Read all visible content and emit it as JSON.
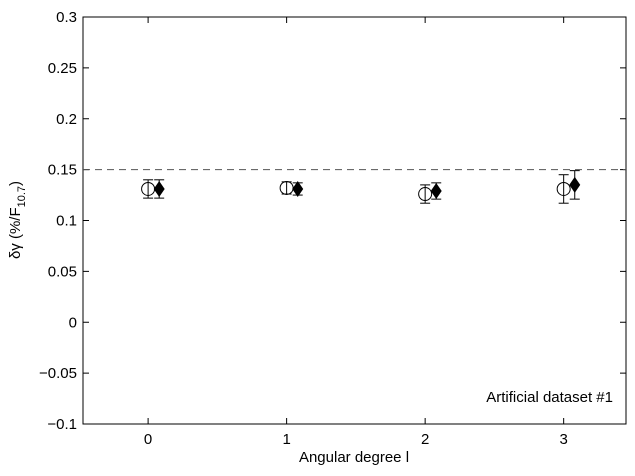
{
  "chart_data": {
    "type": "scatter",
    "xlabel": "Angular degree l",
    "ylabel": {
      "text": "δγ (%/F",
      "sub": "10.7",
      "end": ")"
    },
    "annotation": "Artificial dataset #1",
    "xlim": [
      -0.47,
      3.45
    ],
    "xticks": [
      0,
      1,
      2,
      3
    ],
    "ylim": [
      -0.1,
      0.3
    ],
    "yticks": [
      {
        "value": -0.1,
        "label": "−0.1"
      },
      {
        "value": -0.05,
        "label": "−0.05"
      },
      0,
      0.05,
      0.1,
      0.15,
      0.2,
      0.25,
      0.3
    ],
    "hline": 0.15,
    "series": [
      {
        "marker": "circle",
        "color": "#000000",
        "x": [
          0,
          1,
          2,
          3
        ],
        "values": [
          0.131,
          0.132,
          0.126,
          0.131
        ],
        "errors": [
          0.009,
          0.006,
          0.009,
          0.014
        ]
      },
      {
        "marker": "diamond",
        "color": "#000000",
        "x": [
          0.08,
          1.08,
          2.08,
          3.08
        ],
        "values": [
          0.131,
          0.131,
          0.129,
          0.135
        ],
        "errors": [
          0.009,
          0.006,
          0.008,
          0.014
        ]
      }
    ]
  }
}
